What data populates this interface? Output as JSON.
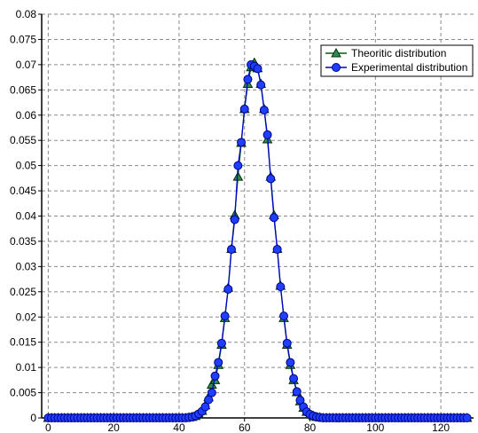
{
  "chart_data": {
    "type": "line",
    "title": "",
    "xlabel": "",
    "ylabel": "",
    "xlim": [
      -2,
      130
    ],
    "ylim": [
      0,
      0.08
    ],
    "xticks": [
      0,
      20,
      40,
      60,
      80,
      100,
      120
    ],
    "xtick_labels": [
      "0",
      "20",
      "40",
      "60",
      "80",
      "100",
      "120"
    ],
    "yticks": [
      0,
      0.005,
      0.01,
      0.015,
      0.02,
      0.025,
      0.03,
      0.035,
      0.04,
      0.045,
      0.05,
      0.055,
      0.06,
      0.065,
      0.07,
      0.075,
      0.08
    ],
    "ytick_labels": [
      "0",
      "0.005",
      "0.01",
      "0.015",
      "0.02",
      "0.025",
      "0.03",
      "0.035",
      "0.04",
      "0.045",
      "0.05",
      "0.055",
      "0.06",
      "0.065",
      "0.07",
      "0.075",
      "0.08"
    ],
    "grid": true,
    "legend_position": "top-right",
    "series": [
      {
        "name": "Theoritic distribution",
        "color": "#006400",
        "marker": "triangle",
        "x": [
          0,
          1,
          2,
          3,
          4,
          5,
          6,
          7,
          8,
          9,
          10,
          11,
          12,
          13,
          14,
          15,
          16,
          17,
          18,
          19,
          20,
          21,
          22,
          23,
          24,
          25,
          26,
          27,
          28,
          29,
          30,
          31,
          32,
          33,
          34,
          35,
          36,
          37,
          38,
          39,
          40,
          41,
          42,
          43,
          44,
          45,
          46,
          47,
          48,
          49,
          50,
          51,
          52,
          53,
          54,
          55,
          56,
          57,
          58,
          59,
          60,
          61,
          62,
          63,
          64,
          65,
          66,
          67,
          68,
          69,
          70,
          71,
          72,
          73,
          74,
          75,
          76,
          77,
          78,
          79,
          80,
          81,
          82,
          83,
          84,
          85,
          86,
          87,
          88,
          89,
          90,
          91,
          92,
          93,
          94,
          95,
          96,
          97,
          98,
          99,
          100,
          101,
          102,
          103,
          104,
          105,
          106,
          107,
          108,
          109,
          110,
          111,
          112,
          113,
          114,
          115,
          116,
          117,
          118,
          119,
          120,
          121,
          122,
          123,
          124,
          125,
          126,
          127,
          128
        ],
        "y": [
          0,
          0,
          0,
          0,
          0,
          0,
          0,
          0,
          0,
          0,
          0,
          0,
          0,
          0,
          0,
          0,
          0,
          0,
          0,
          0,
          0,
          0,
          0,
          0,
          0,
          0,
          0,
          0,
          0,
          0,
          0,
          0,
          0,
          0,
          0,
          0,
          0,
          0,
          0,
          0,
          0,
          0,
          0,
          0.0001,
          0.0002,
          0.0004,
          0.0008,
          0.0014,
          0.0025,
          0.0041,
          0.0066,
          0.0075,
          0.0105,
          0.0145,
          0.0198,
          0.0258,
          0.0335,
          0.0402,
          0.0478,
          0.0545,
          0.0612,
          0.0662,
          0.0695,
          0.0704,
          0.0693,
          0.0662,
          0.0612,
          0.0552,
          0.0478,
          0.0402,
          0.0335,
          0.0262,
          0.0198,
          0.0145,
          0.0105,
          0.0075,
          0.0051,
          0.0033,
          0.002,
          0.0012,
          0.0007,
          0.0004,
          0.0002,
          0.0001,
          0,
          0,
          0,
          0,
          0,
          0,
          0,
          0,
          0,
          0,
          0,
          0,
          0,
          0,
          0,
          0,
          0,
          0,
          0,
          0,
          0,
          0,
          0,
          0,
          0,
          0,
          0,
          0,
          0,
          0,
          0,
          0,
          0,
          0,
          0,
          0,
          0,
          0,
          0,
          0,
          0,
          0,
          0,
          0,
          0
        ]
      },
      {
        "name": "Experimental distribution",
        "color": "#0000cc",
        "marker": "circle",
        "x": [
          0,
          1,
          2,
          3,
          4,
          5,
          6,
          7,
          8,
          9,
          10,
          11,
          12,
          13,
          14,
          15,
          16,
          17,
          18,
          19,
          20,
          21,
          22,
          23,
          24,
          25,
          26,
          27,
          28,
          29,
          30,
          31,
          32,
          33,
          34,
          35,
          36,
          37,
          38,
          39,
          40,
          41,
          42,
          43,
          44,
          45,
          46,
          47,
          48,
          49,
          50,
          51,
          52,
          53,
          54,
          55,
          56,
          57,
          58,
          59,
          60,
          61,
          62,
          63,
          64,
          65,
          66,
          67,
          68,
          69,
          70,
          71,
          72,
          73,
          74,
          75,
          76,
          77,
          78,
          79,
          80,
          81,
          82,
          83,
          84,
          85,
          86,
          87,
          88,
          89,
          90,
          91,
          92,
          93,
          94,
          95,
          96,
          97,
          98,
          99,
          100,
          101,
          102,
          103,
          104,
          105,
          106,
          107,
          108,
          109,
          110,
          111,
          112,
          113,
          114,
          115,
          116,
          117,
          118,
          119,
          120,
          121,
          122,
          123,
          124,
          125,
          126,
          127,
          128
        ],
        "y": [
          0,
          0,
          0,
          0,
          0,
          0,
          0,
          0,
          0,
          0,
          0,
          0,
          0,
          0,
          0,
          0,
          0,
          0,
          0,
          0,
          0,
          0,
          0,
          0,
          0,
          0,
          0,
          0,
          0,
          0,
          0,
          0,
          0,
          0,
          0,
          0,
          0,
          0,
          0,
          0,
          0,
          0,
          0,
          0.0001,
          0.0002,
          0.0004,
          0.0008,
          0.0013,
          0.0022,
          0.0036,
          0.005,
          0.0083,
          0.011,
          0.0148,
          0.0202,
          0.0255,
          0.0334,
          0.0393,
          0.05,
          0.0546,
          0.0612,
          0.0671,
          0.07,
          0.0697,
          0.0692,
          0.066,
          0.061,
          0.0561,
          0.0474,
          0.0397,
          0.0334,
          0.026,
          0.0202,
          0.0148,
          0.011,
          0.0078,
          0.0052,
          0.0035,
          0.0022,
          0.0012,
          0.0007,
          0.0004,
          0.0002,
          0.0001,
          0,
          0,
          0,
          0,
          0,
          0,
          0,
          0,
          0,
          0,
          0,
          0,
          0,
          0,
          0,
          0,
          0,
          0,
          0,
          0,
          0,
          0,
          0,
          0,
          0,
          0,
          0,
          0,
          0,
          0,
          0,
          0,
          0,
          0,
          0,
          0,
          0,
          0,
          0,
          0,
          0,
          0,
          0,
          0,
          0
        ]
      }
    ]
  }
}
